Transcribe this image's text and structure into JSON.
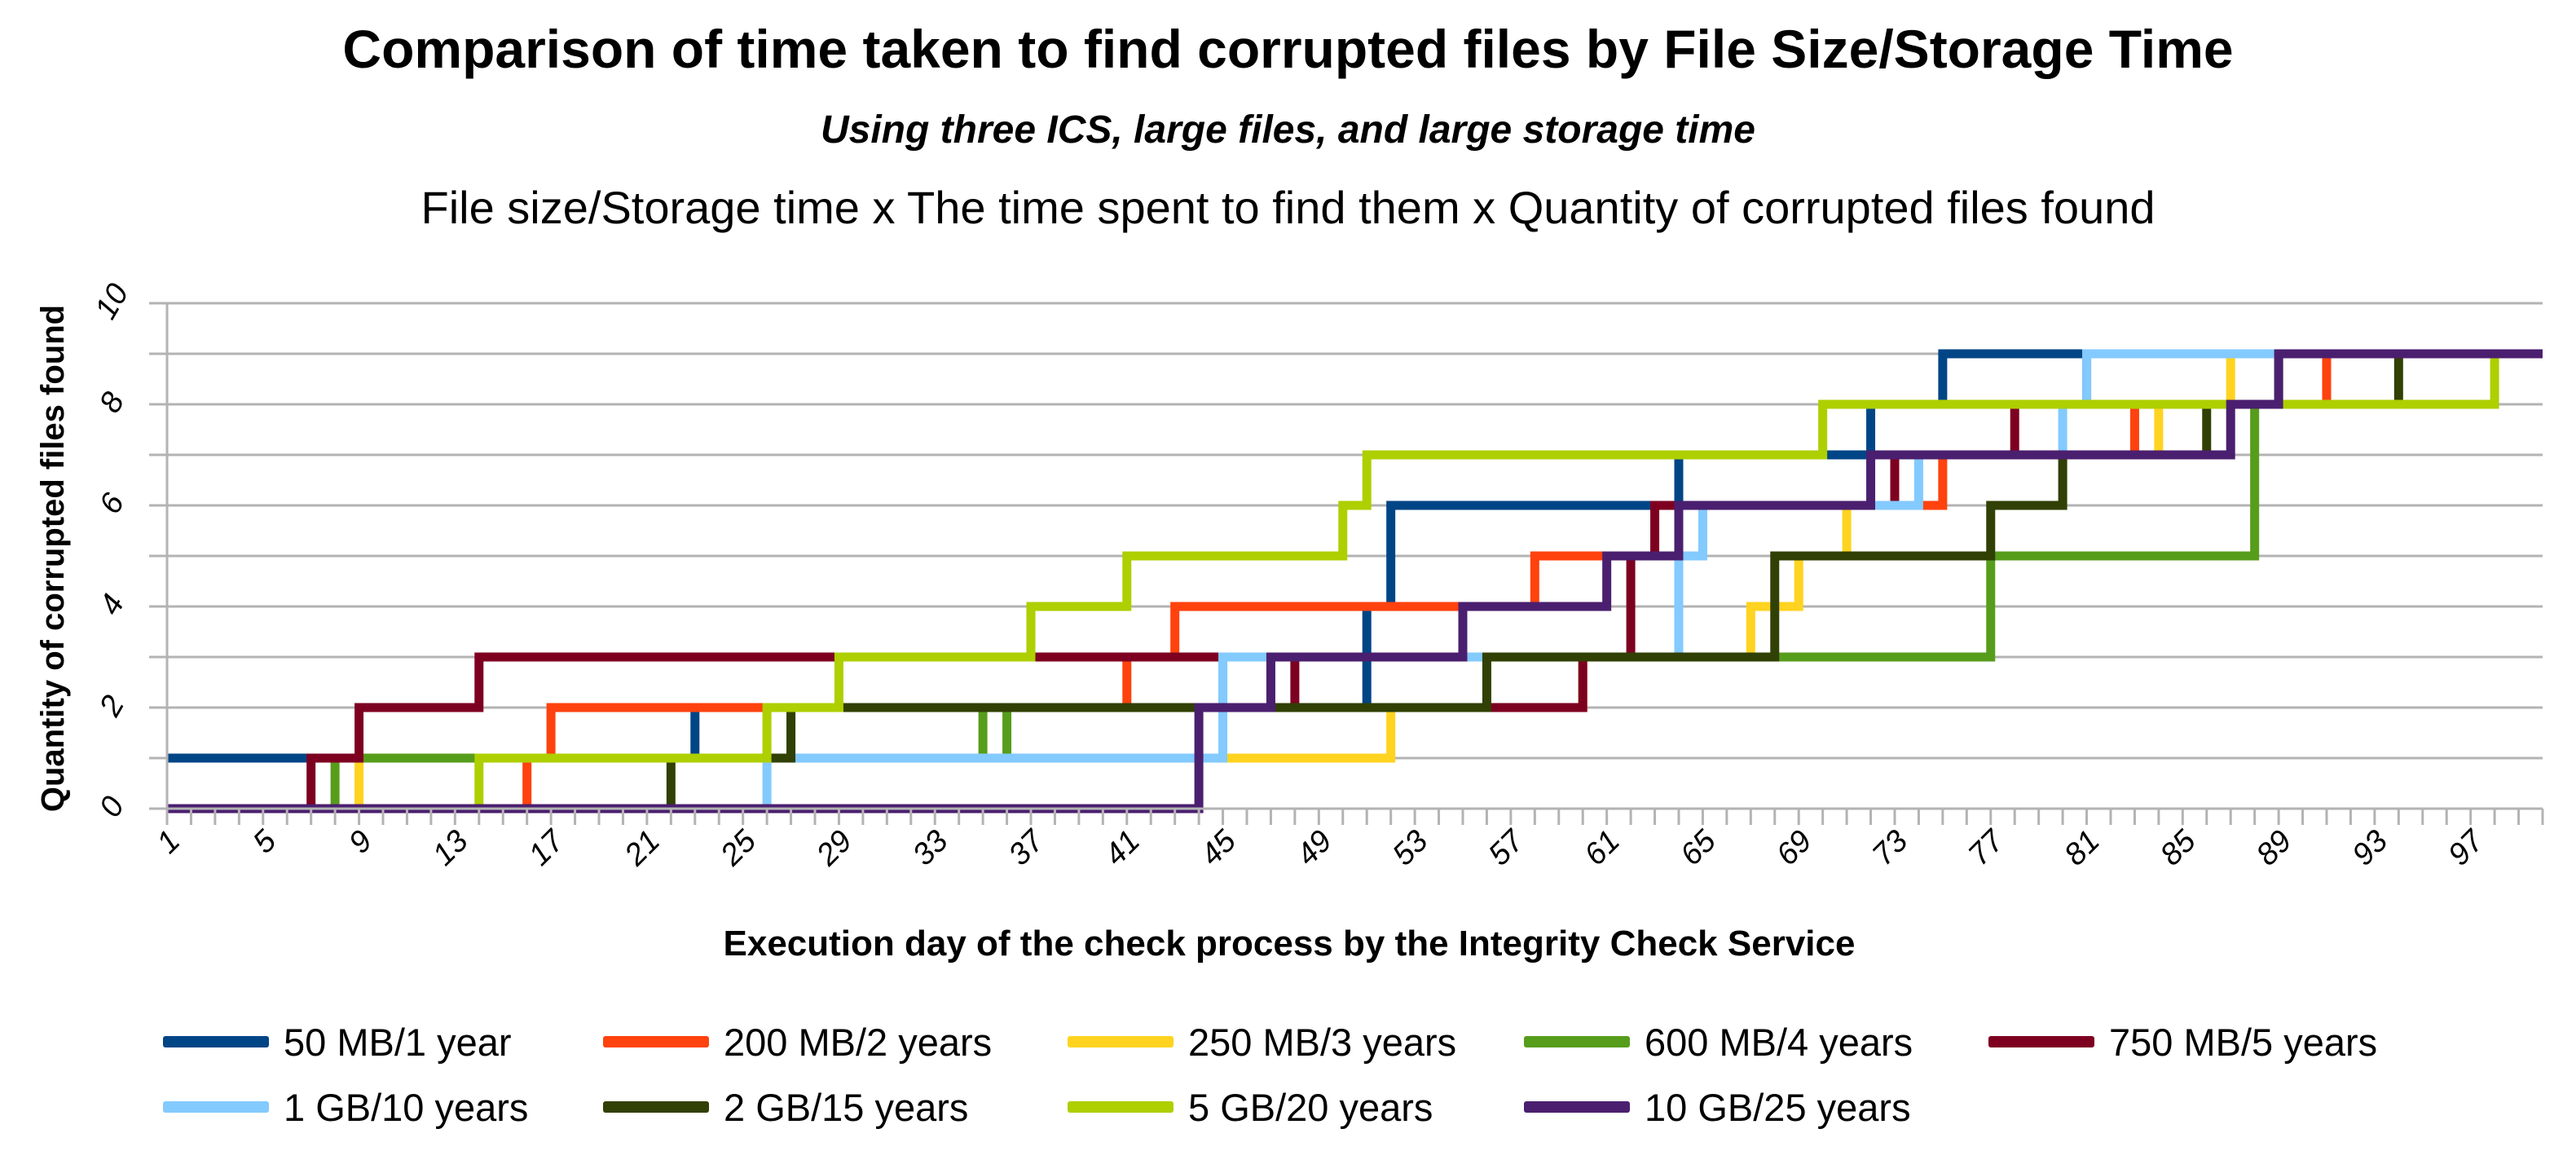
{
  "chart_data": {
    "type": "line",
    "step": true,
    "title": "Comparison of time taken to find corrupted files by File Size/Storage Time",
    "subtitle": "Using three ICS, large files, and large storage time",
    "subtitle2": "File size/Storage time x The time spent to find them x Quantity of corrupted files found",
    "xlabel": "Execution day of the check process by the Integrity Check Service",
    "ylabel": "Quantity of corrupted files found",
    "xlim": [
      1,
      100
    ],
    "ylim": [
      0,
      10
    ],
    "yticks": [
      "0",
      "2",
      "4",
      "6",
      "8",
      "10"
    ],
    "xticks": [
      "1",
      "5",
      "9",
      "13",
      "17",
      "21",
      "25",
      "29",
      "33",
      "37",
      "41",
      "45",
      "49",
      "53",
      "57",
      "61",
      "65",
      "69",
      "73",
      "77",
      "81",
      "85",
      "89",
      "93",
      "97"
    ],
    "legend_position": "bottom",
    "series": [
      {
        "name": "50 MB/1 year",
        "color": "#004586",
        "points": [
          [
            1,
            1
          ],
          [
            23,
            2
          ],
          [
            51,
            4
          ],
          [
            52,
            6
          ],
          [
            63,
            6
          ],
          [
            64,
            7
          ],
          [
            71,
            7
          ],
          [
            72,
            8
          ],
          [
            74,
            8
          ],
          [
            75,
            9
          ],
          [
            100,
            9
          ]
        ]
      },
      {
        "name": "200 MB/2 years",
        "color": "#ff420e",
        "points": [
          [
            1,
            0
          ],
          [
            16,
            1
          ],
          [
            17,
            2
          ],
          [
            40,
            2
          ],
          [
            41,
            3
          ],
          [
            42,
            3
          ],
          [
            43,
            4
          ],
          [
            57,
            4
          ],
          [
            58,
            5
          ],
          [
            63,
            5
          ],
          [
            64,
            6
          ],
          [
            74,
            6
          ],
          [
            75,
            7
          ],
          [
            82,
            7
          ],
          [
            83,
            8
          ],
          [
            90,
            8
          ],
          [
            91,
            9
          ],
          [
            100,
            9
          ]
        ]
      },
      {
        "name": "250 MB/3 years",
        "color": "#ffd320",
        "points": [
          [
            1,
            0
          ],
          [
            8,
            0
          ],
          [
            9,
            1
          ],
          [
            45,
            1
          ],
          [
            51,
            1
          ],
          [
            52,
            2
          ],
          [
            56,
            2
          ],
          [
            59,
            2
          ],
          [
            60,
            3
          ],
          [
            66,
            3
          ],
          [
            67,
            4
          ],
          [
            68,
            4
          ],
          [
            69,
            5
          ],
          [
            70,
            5
          ],
          [
            71,
            6
          ],
          [
            72,
            6
          ],
          [
            73,
            7
          ],
          [
            83,
            7
          ],
          [
            84,
            8
          ],
          [
            86,
            8
          ],
          [
            87,
            9
          ],
          [
            100,
            9
          ]
        ]
      },
      {
        "name": "600 MB/4 years",
        "color": "#579d1c",
        "points": [
          [
            1,
            0
          ],
          [
            7,
            0
          ],
          [
            8,
            1
          ],
          [
            26,
            1
          ],
          [
            27,
            2
          ],
          [
            34,
            2
          ],
          [
            35,
            1
          ],
          [
            36,
            2
          ],
          [
            44,
            2
          ],
          [
            45,
            3
          ],
          [
            53,
            3
          ],
          [
            54,
            3
          ],
          [
            76,
            3
          ],
          [
            77,
            5
          ],
          [
            84,
            5
          ],
          [
            88,
            8
          ],
          [
            89,
            9
          ],
          [
            100,
            9
          ]
        ]
      },
      {
        "name": "750 MB/5 years",
        "color": "#7e0021",
        "points": [
          [
            1,
            0
          ],
          [
            6,
            0
          ],
          [
            7,
            1
          ],
          [
            8,
            1
          ],
          [
            9,
            2
          ],
          [
            13,
            2
          ],
          [
            14,
            3
          ],
          [
            37,
            3
          ],
          [
            47,
            3
          ],
          [
            48,
            2
          ],
          [
            60,
            3
          ],
          [
            61,
            3
          ],
          [
            62,
            5
          ],
          [
            63,
            6
          ],
          [
            72,
            6
          ],
          [
            73,
            7
          ],
          [
            77,
            7
          ],
          [
            78,
            8
          ],
          [
            80,
            8
          ],
          [
            81,
            9
          ],
          [
            100,
            9
          ]
        ]
      },
      {
        "name": "1 GB/10 years",
        "color": "#83caff",
        "points": [
          [
            1,
            0
          ],
          [
            25,
            0
          ],
          [
            26,
            1
          ],
          [
            44,
            1
          ],
          [
            45,
            3
          ],
          [
            62,
            3
          ],
          [
            64,
            5
          ],
          [
            65,
            6
          ],
          [
            73,
            6
          ],
          [
            74,
            7
          ],
          [
            78,
            7
          ],
          [
            80,
            8
          ],
          [
            81,
            9
          ],
          [
            100,
            9
          ]
        ]
      },
      {
        "name": "2 GB/15 years",
        "color": "#314004",
        "points": [
          [
            1,
            0
          ],
          [
            21,
            0
          ],
          [
            22,
            1
          ],
          [
            26,
            1
          ],
          [
            27,
            2
          ],
          [
            55,
            2
          ],
          [
            56,
            3
          ],
          [
            67,
            3
          ],
          [
            68,
            5
          ],
          [
            76,
            5
          ],
          [
            77,
            6
          ],
          [
            79,
            6
          ],
          [
            80,
            7
          ],
          [
            85,
            7
          ],
          [
            86,
            8
          ],
          [
            93,
            8
          ],
          [
            94,
            9
          ],
          [
            100,
            9
          ]
        ]
      },
      {
        "name": "5 GB/20 years",
        "color": "#aecf00",
        "points": [
          [
            1,
            0
          ],
          [
            13,
            0
          ],
          [
            14,
            1
          ],
          [
            25,
            1
          ],
          [
            26,
            2
          ],
          [
            28,
            2
          ],
          [
            29,
            3
          ],
          [
            36,
            3
          ],
          [
            37,
            4
          ],
          [
            40,
            4
          ],
          [
            41,
            5
          ],
          [
            49,
            5
          ],
          [
            50,
            6
          ],
          [
            51,
            7
          ],
          [
            69,
            7
          ],
          [
            70,
            8
          ],
          [
            97,
            8
          ],
          [
            98,
            9
          ],
          [
            100,
            9
          ]
        ]
      },
      {
        "name": "10 GB/25 years",
        "color": "#4b1f6f",
        "points": [
          [
            1,
            0
          ],
          [
            43,
            0
          ],
          [
            44,
            2
          ],
          [
            46,
            2
          ],
          [
            47,
            3
          ],
          [
            53,
            3
          ],
          [
            54,
            3
          ],
          [
            55,
            4
          ],
          [
            60,
            4
          ],
          [
            61,
            5
          ],
          [
            62,
            5
          ],
          [
            63,
            5
          ],
          [
            64,
            6
          ],
          [
            71,
            6
          ],
          [
            72,
            7
          ],
          [
            86,
            7
          ],
          [
            87,
            8
          ],
          [
            88,
            8
          ],
          [
            89,
            9
          ],
          [
            100,
            9
          ]
        ]
      }
    ]
  }
}
